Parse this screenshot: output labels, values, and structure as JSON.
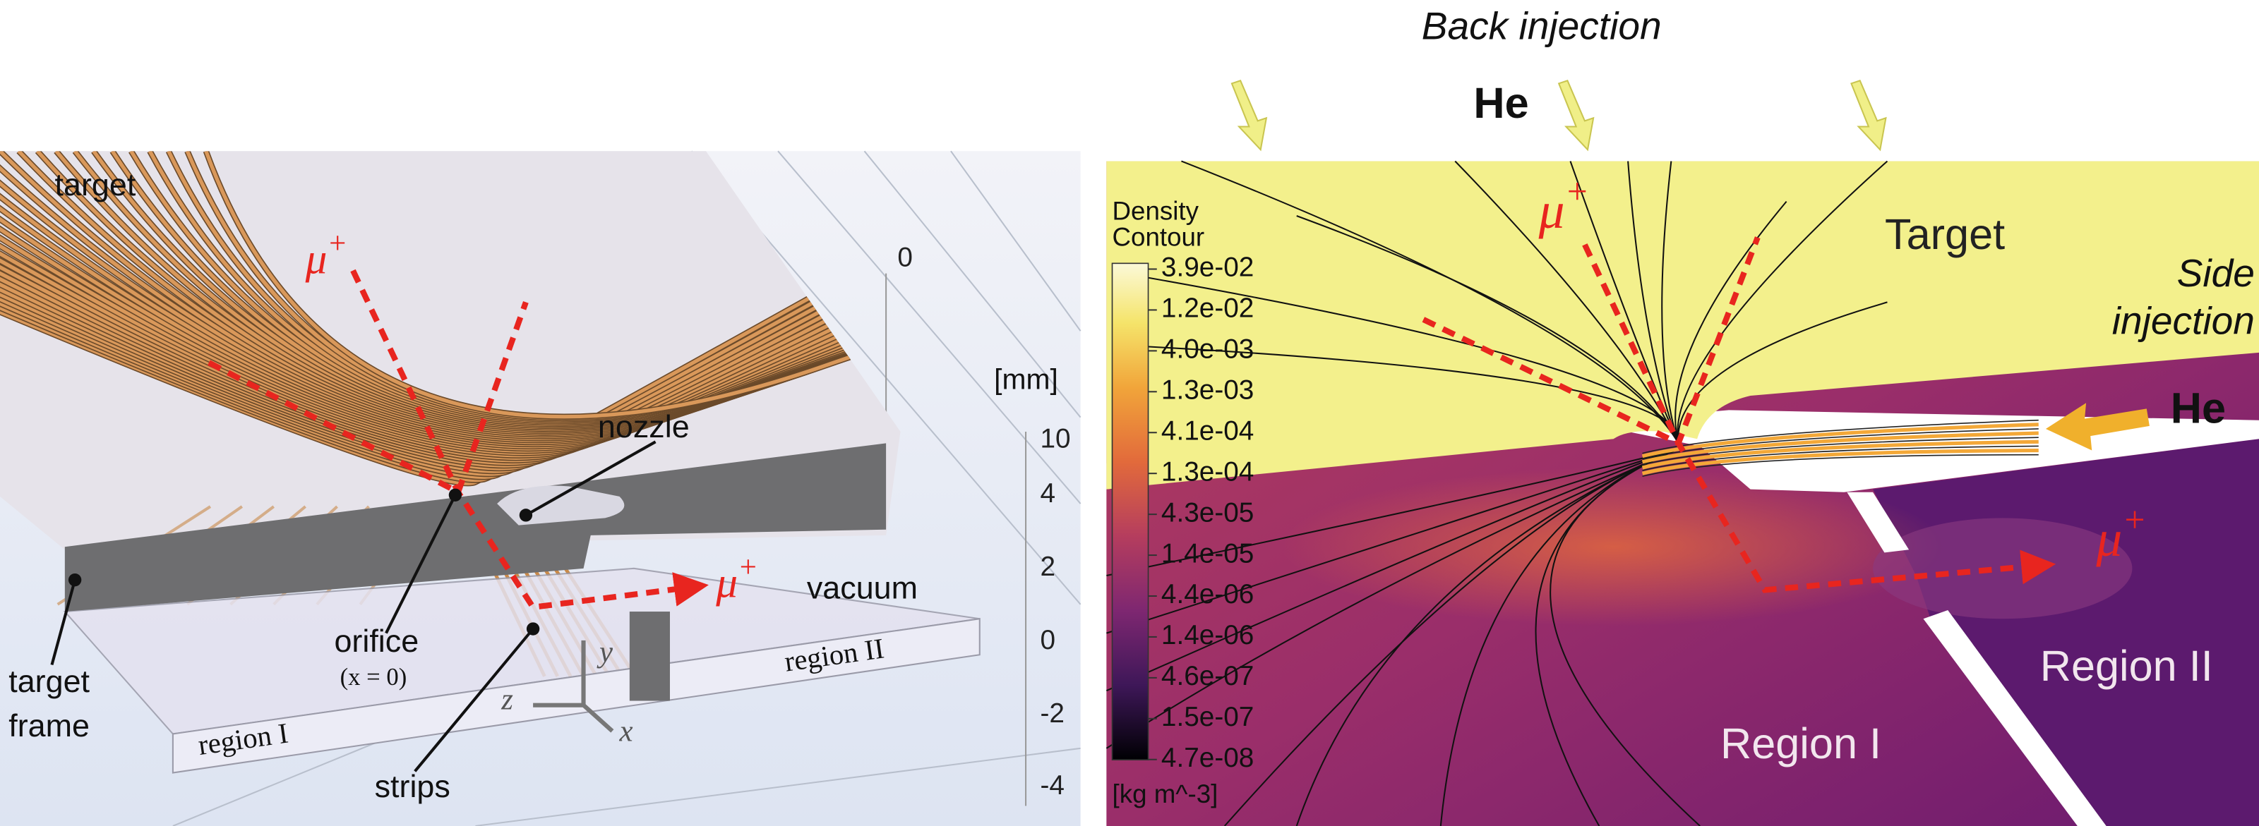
{
  "left_panel": {
    "target": "target",
    "mu_top": {
      "base": "μ",
      "sup": "+"
    },
    "mu_right": {
      "base": "μ",
      "sup": "+"
    },
    "nozzle": "nozzle",
    "unit": "[mm]",
    "scale_labels": [
      "0",
      "10",
      "4",
      "2",
      "0",
      "-2",
      "-4"
    ],
    "vacuum": "vacuum",
    "region_2": "region II",
    "region_1": "region I",
    "target_frame": [
      "target",
      "frame"
    ],
    "orifice": "orifice",
    "orifice_note": "(x = 0)",
    "strips": "strips",
    "axes": {
      "y": "y",
      "z": "z",
      "x": "x"
    }
  },
  "right_panel": {
    "back_injection": "Back injection",
    "he_top": "He",
    "mu_top": {
      "base": "μ",
      "sup": "+"
    },
    "target": "Target",
    "side_injection": [
      "Side",
      "injection"
    ],
    "he_side": "He",
    "colorbar": {
      "title": [
        "Density",
        "Contour"
      ],
      "labels": [
        "3.9e-02",
        "1.2e-02",
        "4.0e-03",
        "1.3e-03",
        "4.1e-04",
        "1.3e-04",
        "4.3e-05",
        "1.4e-05",
        "4.4e-06",
        "1.4e-06",
        "4.6e-07",
        "1.5e-07",
        "4.7e-08"
      ],
      "unit": "[kg m^-3]"
    },
    "region_1": "Region I",
    "region_2": "Region II",
    "mu_right": {
      "base": "μ",
      "sup": "+"
    }
  }
}
